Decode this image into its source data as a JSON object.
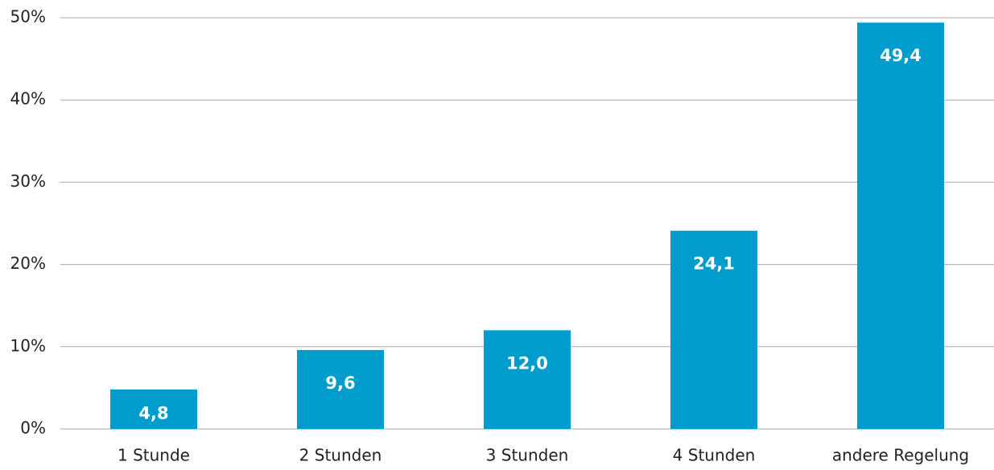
{
  "chart_data": {
    "type": "bar",
    "categories": [
      "1 Stunde",
      "2 Stunden",
      "3 Stunden",
      "4 Stunden",
      "andere Regelung"
    ],
    "values": [
      4.8,
      9.6,
      12.0,
      24.1,
      49.4
    ],
    "value_labels": [
      "4,8",
      "9,6",
      "12,0",
      "24,1",
      "49,4"
    ],
    "color": "#009ccc",
    "ylim": [
      0,
      50
    ],
    "yticks": [
      {
        "value": 0,
        "label": "0%"
      },
      {
        "value": 10,
        "label": "10%"
      },
      {
        "value": 20,
        "label": "20%"
      },
      {
        "value": 30,
        "label": "30%"
      },
      {
        "value": 40,
        "label": "40%"
      },
      {
        "value": 50,
        "label": "50%"
      }
    ],
    "grid": true
  }
}
